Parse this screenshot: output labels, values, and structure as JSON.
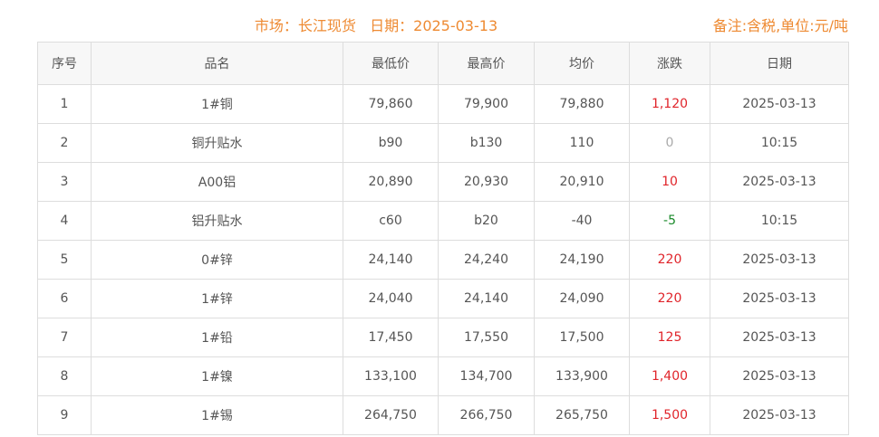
{
  "header": {
    "title": "市场：长江现货   日期：2025-03-13",
    "note": "备注:含税,单位:元/吨"
  },
  "colors": {
    "accent": "#ee8a32",
    "up": "#e0242a",
    "down": "#1a8a2a",
    "flat": "#aaaaaa"
  },
  "columns": [
    "序号",
    "品名",
    "最低价",
    "最高价",
    "均价",
    "涨跌",
    "日期"
  ],
  "rows": [
    [
      "1",
      "1#铜",
      "79,860",
      "79,900",
      "79,880",
      "1,120",
      "2025-03-13",
      "up"
    ],
    [
      "2",
      "铜升贴水",
      "b90",
      "b130",
      "110",
      "0",
      "10:15",
      "flat"
    ],
    [
      "3",
      "A00铝",
      "20,890",
      "20,930",
      "20,910",
      "10",
      "2025-03-13",
      "up"
    ],
    [
      "4",
      "铝升贴水",
      "c60",
      "b20",
      "-40",
      "-5",
      "10:15",
      "down"
    ],
    [
      "5",
      "0#锌",
      "24,140",
      "24,240",
      "24,190",
      "220",
      "2025-03-13",
      "up"
    ],
    [
      "6",
      "1#锌",
      "24,040",
      "24,140",
      "24,090",
      "220",
      "2025-03-13",
      "up"
    ],
    [
      "7",
      "1#铅",
      "17,450",
      "17,550",
      "17,500",
      "125",
      "2025-03-13",
      "up"
    ],
    [
      "8",
      "1#镍",
      "133,100",
      "134,700",
      "133,900",
      "1,400",
      "2025-03-13",
      "up"
    ],
    [
      "9",
      "1#锡",
      "264,750",
      "266,750",
      "265,750",
      "1,500",
      "2025-03-13",
      "up"
    ]
  ]
}
